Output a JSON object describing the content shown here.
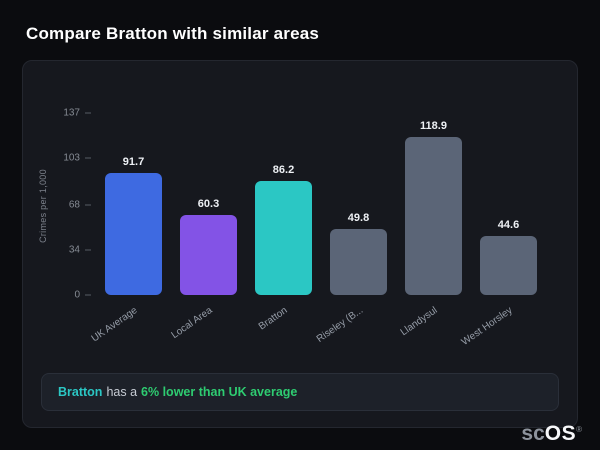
{
  "page": {
    "title": "Compare Bratton with similar areas"
  },
  "chart_data": {
    "type": "bar",
    "title": "",
    "ylabel": "Crimes per 1,000",
    "categories": [
      "UK Average",
      "Local Area",
      "Bratton",
      "Riseley (B...",
      "Llandysul",
      "West Horsley"
    ],
    "values": [
      91.7,
      60.3,
      86.2,
      49.8,
      118.9,
      44.6
    ],
    "value_labels": [
      "91.7",
      "60.3",
      "86.2",
      "49.8",
      "118.9",
      "44.6"
    ],
    "bar_colors": [
      "#3e6ae1",
      "#8353e6",
      "#2bc7c4",
      "#5b6577",
      "#5b6577",
      "#5b6577"
    ],
    "yticks": [
      137,
      103,
      68,
      34,
      0
    ],
    "ylim": [
      0,
      137
    ],
    "grid": false,
    "legend": false
  },
  "note": {
    "area": "Bratton",
    "middle": "has a",
    "highlight": "6% lower than UK average"
  },
  "logo": {
    "left": "sc",
    "right": "OS",
    "mark": "®"
  },
  "colors": {
    "background": "#0b0c0f",
    "card": "#16181e",
    "accent_blue": "#3e6ae1",
    "accent_purple": "#8353e6",
    "accent_teal": "#2bc7c4",
    "neutral_bar": "#5b6577",
    "note_area_text": "#2bc7c4",
    "note_highlight_text": "#2ecc71"
  }
}
